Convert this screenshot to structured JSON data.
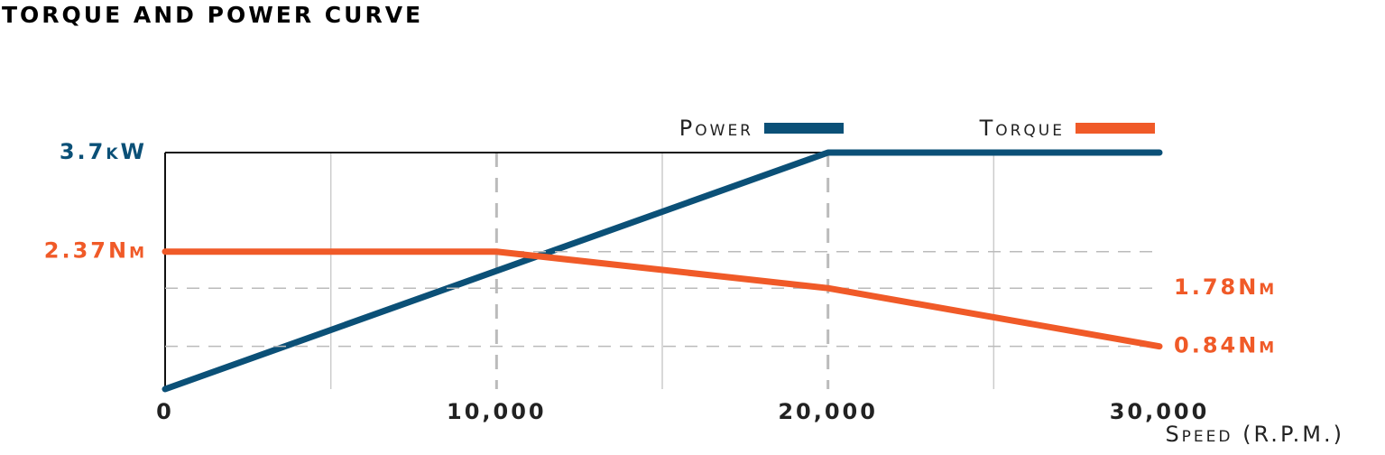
{
  "chart_data": {
    "type": "line",
    "title": "TORQUE AND POWER CURVE",
    "x_label": "Speed (R.P.M.)",
    "xlim": [
      0,
      30000
    ],
    "xticks": [
      0,
      {
        "value": 10000,
        "label": "10,000"
      },
      {
        "value": 20000,
        "label": "20,000"
      },
      {
        "value": 30000,
        "label": "30,000"
      }
    ],
    "ylim": [
      0,
      3.7
    ],
    "y2lim": [
      0.15,
      3.97
    ],
    "grid": true,
    "legend": "top-right",
    "series": [
      {
        "name": "Power",
        "color": "#0b5077",
        "x": [
          0,
          20000,
          30000
        ],
        "values": [
          0,
          3.7,
          3.7
        ],
        "value_labels": [
          null,
          "3.7kW",
          null
        ]
      },
      {
        "name": "Torque",
        "color": "#f05a28",
        "axis": "y2",
        "x": [
          0,
          10000,
          20000,
          30000
        ],
        "values": [
          2.37,
          2.37,
          1.78,
          0.84
        ],
        "value_labels": [
          "2.37Nm",
          null,
          "1.78Nm",
          "0.84Nm"
        ]
      }
    ]
  }
}
